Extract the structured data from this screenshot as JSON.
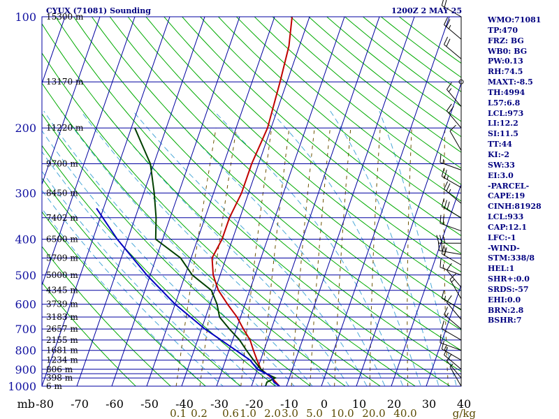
{
  "header": {
    "title": "CYUX (71081) Sounding",
    "time": "1200Z  2 MAY 25"
  },
  "chart_data": {
    "type": "line",
    "title": "CYUX (71081) Sounding",
    "subtitle": "1200Z  2 MAY 25",
    "xlabel": "",
    "ylabel": "mb",
    "x_unit_label": "mb",
    "xlim": [
      -80,
      0
    ],
    "ylim": [
      1000,
      100
    ],
    "pressure_levels": [
      100,
      200,
      300,
      400,
      500,
      600,
      700,
      800,
      900,
      1000
    ],
    "pressure_ticks": [
      100,
      150,
      200,
      250,
      300,
      350,
      400,
      450,
      500,
      550,
      600,
      650,
      700,
      750,
      800,
      850,
      900,
      925,
      950,
      1000
    ],
    "temperature_ticks": [
      -80,
      -70,
      -60,
      -50,
      -40,
      -30,
      -20,
      -10,
      0,
      10,
      20,
      30,
      40
    ],
    "temperature_tick_labels": [
      "-80",
      "-70",
      "-60",
      "-50",
      "-40",
      "-30",
      "-20",
      "-10",
      "0",
      "10",
      "20",
      "30",
      "40"
    ],
    "mixing_ratio_labels": [
      {
        "t": -41,
        "label": "0.1"
      },
      {
        "t": -35,
        "label": "0.2"
      },
      {
        "t": -26,
        "label": "0.6"
      },
      {
        "t": -21,
        "label": "1.0"
      },
      {
        "t": -14,
        "label": "2.0"
      },
      {
        "t": -9,
        "label": "3.0"
      },
      {
        "t": -2,
        "label": "5.0"
      },
      {
        "t": 6,
        "label": "10.0"
      },
      {
        "t": 15,
        "label": "20.0"
      },
      {
        "t": 24,
        "label": "40.0"
      }
    ],
    "mixing_ratio_unit": "g/kg",
    "mixing_ratio_values": [
      0.1,
      0.2,
      0.6,
      1.0,
      2.0,
      3.0,
      5.0,
      10.0,
      20.0,
      40.0
    ],
    "height_labels": [
      {
        "p": 100,
        "label": "15300 m"
      },
      {
        "p": 150,
        "label": "13170 m"
      },
      {
        "p": 200,
        "label": "11220 m"
      },
      {
        "p": 250,
        "label": "9700 m"
      },
      {
        "p": 300,
        "label": "8450 m"
      },
      {
        "p": 350,
        "label": "7402 m"
      },
      {
        "p": 400,
        "label": "6500 m"
      },
      {
        "p": 450,
        "label": "5709 m"
      },
      {
        "p": 500,
        "label": "5000 m"
      },
      {
        "p": 550,
        "label": "4345 m"
      },
      {
        "p": 600,
        "label": "3739 m"
      },
      {
        "p": 650,
        "label": "3183 m"
      },
      {
        "p": 700,
        "label": "2657 m"
      },
      {
        "p": 750,
        "label": "2155 m"
      },
      {
        "p": 800,
        "label": "1681 m"
      },
      {
        "p": 850,
        "label": "1234 m"
      },
      {
        "p": 900,
        "label": "806 m"
      },
      {
        "p": 950,
        "label": "398 m"
      },
      {
        "p": 1000,
        "label": "6 m"
      }
    ],
    "series": [
      {
        "name": "",
        "kind": "temperature",
        "color": "#c00000",
        "points": [
          [
            1000,
            -12
          ],
          [
            950,
            -15
          ],
          [
            925,
            -17
          ],
          [
            900,
            -19
          ],
          [
            850,
            -21
          ],
          [
            800,
            -23
          ],
          [
            750,
            -25
          ],
          [
            700,
            -28
          ],
          [
            650,
            -31
          ],
          [
            600,
            -35
          ],
          [
            550,
            -39
          ],
          [
            500,
            -42
          ],
          [
            450,
            -44
          ],
          [
            400,
            -43
          ],
          [
            350,
            -43
          ],
          [
            300,
            -42
          ],
          [
            250,
            -42
          ],
          [
            200,
            -41
          ],
          [
            150,
            -42
          ],
          [
            120,
            -43
          ],
          [
            100,
            -45
          ]
        ]
      },
      {
        "name": "",
        "kind": "dewpoint",
        "color": "#004000",
        "points": [
          [
            1000,
            -16
          ],
          [
            975,
            -16
          ],
          [
            950,
            -14
          ],
          [
            925,
            -17
          ],
          [
            900,
            -19
          ],
          [
            850,
            -22
          ],
          [
            800,
            -25
          ],
          [
            750,
            -28
          ],
          [
            700,
            -32
          ],
          [
            650,
            -36
          ],
          [
            600,
            -38
          ],
          [
            550,
            -41
          ],
          [
            500,
            -48
          ],
          [
            450,
            -53
          ],
          [
            400,
            -62
          ],
          [
            350,
            -64
          ],
          [
            300,
            -67
          ],
          [
            250,
            -71
          ],
          [
            200,
            -79
          ]
        ]
      },
      {
        "name": "",
        "kind": "parcel",
        "color": "#0000c0",
        "points": [
          [
            1000,
            -12
          ],
          [
            975,
            -14
          ],
          [
            950,
            -15
          ],
          [
            933,
            -16
          ],
          [
            900,
            -20
          ],
          [
            850,
            -23
          ],
          [
            800,
            -28
          ],
          [
            700,
            -39
          ],
          [
            600,
            -50
          ],
          [
            500,
            -61
          ],
          [
            400,
            -73
          ],
          [
            330,
            -82
          ]
        ]
      }
    ],
    "wind_barbs": [
      {
        "p": 100,
        "dir": 300,
        "spd": 20
      },
      {
        "p": 115,
        "dir": 310,
        "spd": 25
      },
      {
        "p": 130,
        "dir": 310,
        "spd": 20
      },
      {
        "p": 150,
        "dir": 0,
        "spd": 0
      },
      {
        "p": 175,
        "dir": 320,
        "spd": 15
      },
      {
        "p": 200,
        "dir": 320,
        "spd": 20
      },
      {
        "p": 230,
        "dir": 330,
        "spd": 10
      },
      {
        "p": 260,
        "dir": 290,
        "spd": 15
      },
      {
        "p": 290,
        "dir": 300,
        "spd": 25
      },
      {
        "p": 320,
        "dir": 310,
        "spd": 25
      },
      {
        "p": 350,
        "dir": 300,
        "spd": 30
      },
      {
        "p": 380,
        "dir": 290,
        "spd": 20
      },
      {
        "p": 410,
        "dir": 270,
        "spd": 30
      },
      {
        "p": 440,
        "dir": 280,
        "spd": 25
      },
      {
        "p": 470,
        "dir": 300,
        "spd": 20
      },
      {
        "p": 500,
        "dir": 290,
        "spd": 15
      },
      {
        "p": 540,
        "dir": 320,
        "spd": 10
      },
      {
        "p": 580,
        "dir": 330,
        "spd": 15
      },
      {
        "p": 620,
        "dir": 300,
        "spd": 15
      },
      {
        "p": 660,
        "dir": 320,
        "spd": 10
      },
      {
        "p": 700,
        "dir": 310,
        "spd": 15
      },
      {
        "p": 750,
        "dir": 300,
        "spd": 10
      },
      {
        "p": 800,
        "dir": 290,
        "spd": 10
      },
      {
        "p": 850,
        "dir": 300,
        "spd": 15
      },
      {
        "p": 900,
        "dir": 310,
        "spd": 10
      },
      {
        "p": 950,
        "dir": 320,
        "spd": 10
      },
      {
        "p": 1000,
        "dir": 330,
        "spd": 5
      }
    ],
    "colors": {
      "isobar": "#0000a0",
      "isotherm": "#0000a0",
      "dry_adiabat": "#00aa00",
      "moist_adiabat": "#4aa8d8",
      "mixing_ratio": "#6b5200",
      "temperature": "#c00000",
      "dewpoint": "#004000",
      "parcel": "#0000c0"
    },
    "grid": true
  },
  "indices": [
    "WMO:71081",
    "TP:470",
    "FRZ: BG",
    "WB0: BG",
    "PW:0.13",
    "RH:74.5",
    "MAXT:-8.5",
    "TH:4994",
    "L57:6.8",
    "LCL:973",
    "LI:12.2",
    "SI:11.5",
    "TT:44",
    "KI:-2",
    "SW:33",
    "EI:3.0",
    "-PARCEL-",
    "CAPE:19",
    "CINH:81928",
    "LCL:933",
    "CAP:12.1",
    "LFC:-1",
    "-WIND-",
    "STM:338/8",
    "HEL:1",
    "SHR+:0.0",
    "SRDS:-57",
    "EHI:0.0",
    "BRN:2.8",
    "BSHR:7"
  ]
}
